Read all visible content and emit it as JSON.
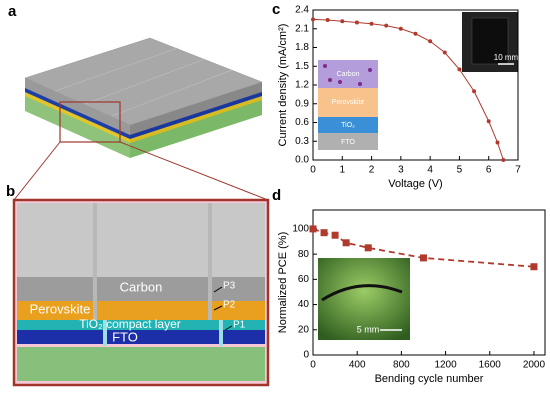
{
  "panels": {
    "a": {
      "label": "a"
    },
    "b": {
      "label": "b",
      "layers": [
        "Carbon",
        "Perovskite",
        "TiO₂ compact layer",
        "FTO"
      ],
      "scribes": [
        "P3",
        "P2",
        "P1"
      ]
    }
  },
  "chart_data": [
    {
      "type": "line",
      "panel_label": "c",
      "x_label": "Voltage (V)",
      "y_label": "Current density (mA/cm²)",
      "x": [
        0,
        0.5,
        1,
        1.5,
        2,
        2.5,
        3,
        3.5,
        4,
        4.5,
        5,
        5.5,
        6,
        6.3,
        6.5
      ],
      "values": [
        2.25,
        2.24,
        2.22,
        2.2,
        2.18,
        2.15,
        2.1,
        2.02,
        1.9,
        1.72,
        1.45,
        1.1,
        0.62,
        0.28,
        0
      ],
      "color": "#b03a2e",
      "marker": "circle",
      "dashed": false,
      "xlim": [
        0,
        7
      ],
      "xticks": [
        0,
        1,
        2,
        3,
        4,
        5,
        6,
        7
      ],
      "ylim": [
        0,
        2.4
      ],
      "yticks": [
        {
          "value": 0,
          "label": "0.0"
        },
        0.3,
        0.6,
        0.9,
        1.2,
        1.5,
        1.8,
        2.1,
        2.4
      ],
      "inset_layers": [
        "Carbon",
        "Perovskite",
        "TiO₂",
        "FTO"
      ],
      "scale_bar": "10 mm"
    },
    {
      "type": "line",
      "panel_label": "d",
      "x_label": "Bending cycle number",
      "y_label": "Normalized PCE (%)",
      "x": [
        0,
        100,
        200,
        300,
        500,
        1000,
        2000
      ],
      "values": [
        100,
        97,
        95,
        89,
        85,
        77,
        70
      ],
      "color": "#b03a2e",
      "marker": "square",
      "dashed": true,
      "xlim": [
        0,
        2100
      ],
      "xticks": [
        0,
        400,
        800,
        1200,
        1600,
        2000
      ],
      "ylim": [
        0,
        115
      ],
      "yticks": [
        0,
        20,
        40,
        60,
        80,
        100
      ],
      "scale_bar": "5 mm"
    }
  ]
}
